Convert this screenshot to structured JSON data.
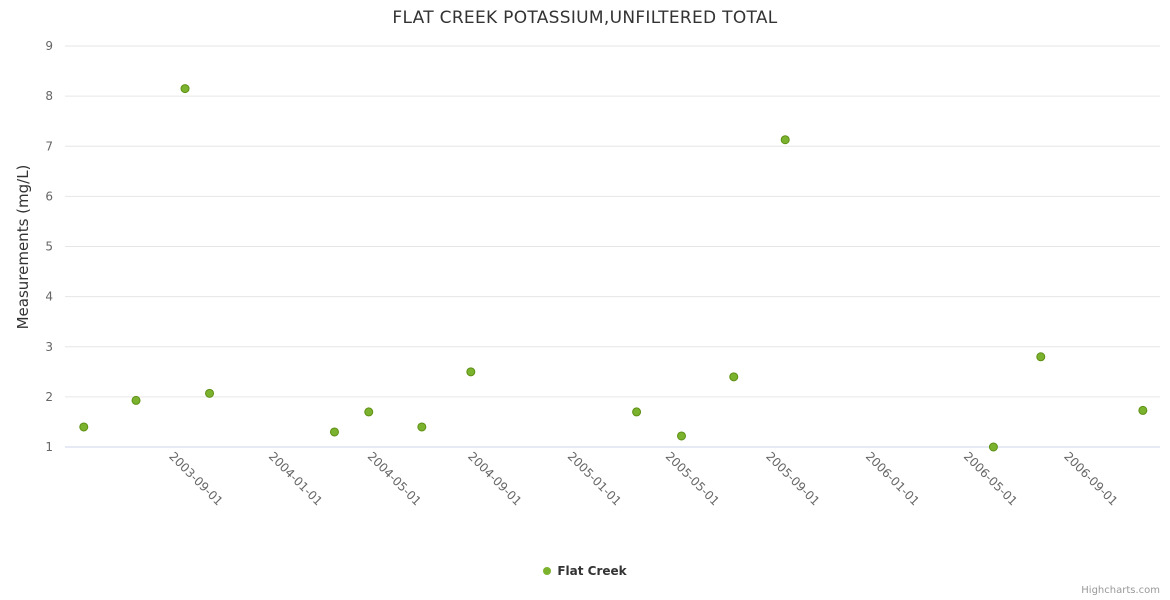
{
  "page": {
    "credits": "Highcharts.com"
  },
  "chart_data": {
    "type": "scatter",
    "title": "FLAT CREEK POTASSIUM,UNFILTERED TOTAL",
    "xlabel": "",
    "ylabel": "Measurements (mg/L)",
    "ylim": [
      1,
      9
    ],
    "y_ticks": [
      1,
      2,
      3,
      4,
      5,
      6,
      7,
      8,
      9
    ],
    "x_ticks": [
      "2003-09-01",
      "2004-01-01",
      "2004-05-01",
      "2004-09-01",
      "2005-01-01",
      "2005-05-01",
      "2005-09-01",
      "2006-01-01",
      "2006-05-01",
      "2006-09-01"
    ],
    "x_range": [
      "2003-05-01",
      "2007-01-01"
    ],
    "grid": true,
    "legend_position": "bottom",
    "colors": {
      "marker_fill": "#7cb32e",
      "marker_stroke": "#5d8f14",
      "grid_line": "#e6e6e6",
      "axis_line": "#ccd6eb",
      "tick_label": "#666666"
    },
    "series": [
      {
        "name": "Flat Creek",
        "points": [
          {
            "x": "2003-05-24",
            "y": 1.4
          },
          {
            "x": "2003-07-27",
            "y": 1.93
          },
          {
            "x": "2003-09-25",
            "y": 8.15
          },
          {
            "x": "2003-10-25",
            "y": 2.07
          },
          {
            "x": "2004-03-26",
            "y": 1.3
          },
          {
            "x": "2004-05-07",
            "y": 1.7
          },
          {
            "x": "2004-07-11",
            "y": 1.4
          },
          {
            "x": "2004-09-09",
            "y": 2.5
          },
          {
            "x": "2005-03-31",
            "y": 1.7
          },
          {
            "x": "2005-05-25",
            "y": 1.22
          },
          {
            "x": "2005-07-28",
            "y": 2.4
          },
          {
            "x": "2005-09-29",
            "y": 7.13
          },
          {
            "x": "2006-06-11",
            "y": 1.0
          },
          {
            "x": "2006-08-08",
            "y": 2.8
          },
          {
            "x": "2006-12-11",
            "y": 1.73
          }
        ]
      }
    ]
  }
}
